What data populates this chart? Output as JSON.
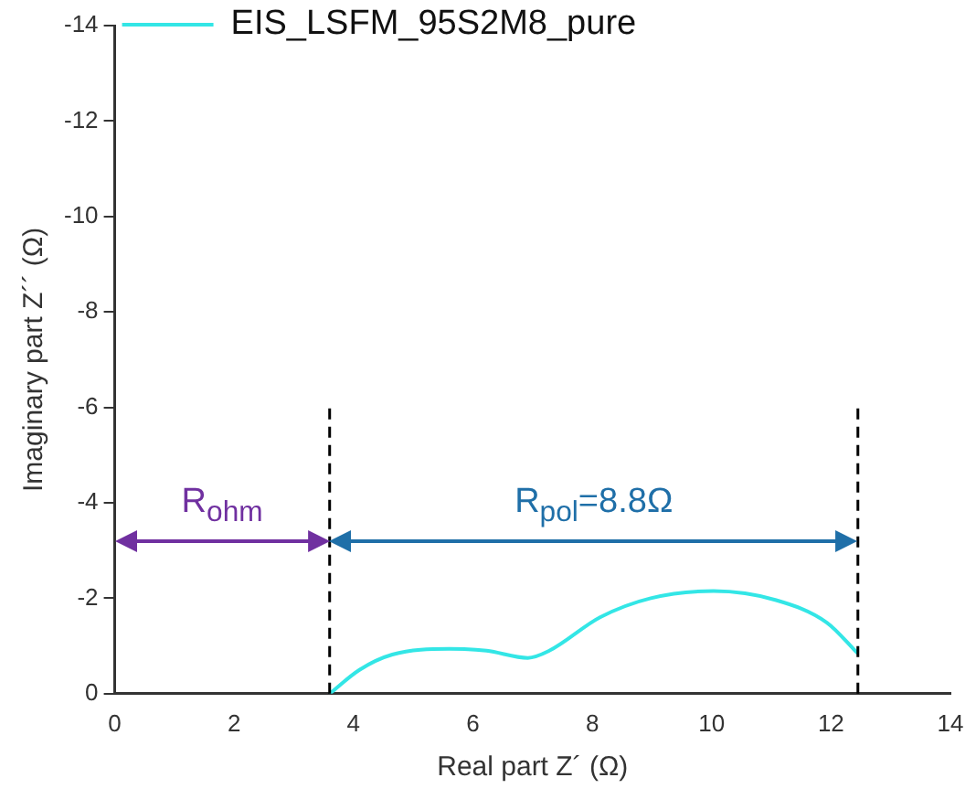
{
  "chart_data": {
    "type": "line",
    "xlabel": "Real part Z´ (Ω)",
    "ylabel": "Imaginary part Z´´ (Ω)",
    "xlim": [
      0,
      14
    ],
    "xticks": [
      0,
      2,
      4,
      6,
      8,
      10,
      12,
      14
    ],
    "ylim": [
      0,
      -14
    ],
    "yticks": [
      0,
      -2,
      -4,
      -6,
      -8,
      -10,
      -12,
      -14
    ],
    "grid": false,
    "legend": "top left",
    "marker": "none",
    "line_style": "solid",
    "series": [
      {
        "name": "EIS_LSFM_95S2M8_pure",
        "color": "#33e6e6",
        "x": [
          3.6,
          4.1,
          4.65,
          5.6,
          6.23,
          6.92,
          7.28,
          8.13,
          8.98,
          10.03,
          11.08,
          11.93,
          12.45
        ],
        "values": [
          0,
          -0.5,
          -0.82,
          -0.94,
          -0.9,
          -0.75,
          -0.9,
          -1.6,
          -2.0,
          -2.15,
          -1.96,
          -1.49,
          -0.84
        ]
      }
    ],
    "ref_lines": [
      {
        "axis": "x",
        "value": 3.6,
        "color": "#000000",
        "line_style": "dashed"
      },
      {
        "axis": "x",
        "value": 12.45,
        "color": "#000000",
        "line_style": "dashed"
      }
    ],
    "annotations": [
      "R$_{ohm}$",
      "R$_{pol}$=8.8Ω"
    ]
  }
}
